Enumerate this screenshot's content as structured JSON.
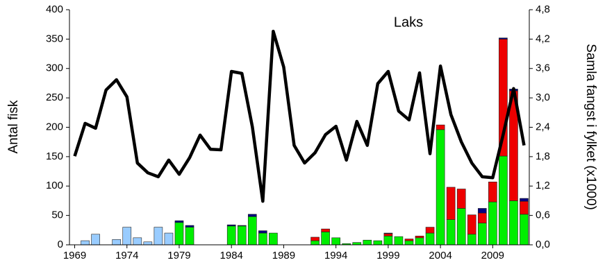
{
  "chart_data": {
    "type": "bar",
    "annotation": "Laks",
    "ylabel": "Antal fisk",
    "y2label": "Samla fangst i fylket (x1000)",
    "x": [
      1969,
      1970,
      1971,
      1972,
      1973,
      1974,
      1975,
      1976,
      1977,
      1978,
      1979,
      1980,
      1981,
      1982,
      1983,
      1984,
      1985,
      1986,
      1987,
      1988,
      1989,
      1990,
      1991,
      1992,
      1993,
      1994,
      1995,
      1996,
      1997,
      1998,
      1999,
      2000,
      2001,
      2002,
      2003,
      2004,
      2005,
      2006,
      2007,
      2008,
      2009,
      2010,
      2011,
      2012
    ],
    "xlim": [
      1968.5,
      2012.5
    ],
    "xticks": [
      1969,
      1974,
      1979,
      1984,
      1989,
      1994,
      1999,
      2004,
      2009
    ],
    "ylim": [
      0,
      400
    ],
    "yticks": [
      0,
      50,
      100,
      150,
      200,
      250,
      300,
      350,
      400
    ],
    "y2lim": [
      0,
      4.8
    ],
    "y2ticks": [
      {
        "value": 0,
        "label": "0,0"
      },
      {
        "value": 0.6,
        "label": "0,6"
      },
      {
        "value": 1.2,
        "label": "1,2"
      },
      {
        "value": 1.8,
        "label": "1,8"
      },
      {
        "value": 2.4,
        "label": "2,4"
      },
      {
        "value": 3.0,
        "label": "3,0"
      },
      {
        "value": 3.6,
        "label": "3,6"
      },
      {
        "value": 4.2,
        "label": "4,2"
      },
      {
        "value": 4.8,
        "label": "4,8"
      }
    ],
    "series": [
      {
        "type": "bar",
        "color": "#99ccff",
        "values": [
          0,
          7,
          18,
          0,
          9,
          30,
          12,
          5,
          30,
          20,
          0,
          0,
          0,
          0,
          0,
          0,
          0,
          0,
          0,
          0,
          0,
          0,
          0,
          0,
          0,
          0,
          0,
          0,
          0,
          0,
          0,
          0,
          0,
          0,
          0,
          0,
          0,
          0,
          0,
          0,
          0,
          0,
          0,
          0
        ]
      },
      {
        "type": "bar",
        "color": "#00ee00",
        "values": [
          0,
          0,
          0,
          0,
          0,
          0,
          0,
          0,
          0,
          0,
          38,
          30,
          0,
          0,
          0,
          32,
          32,
          48,
          20,
          20,
          0,
          0,
          0,
          7,
          22,
          12,
          2,
          4,
          8,
          7,
          15,
          14,
          7,
          12,
          20,
          196,
          43,
          62,
          18,
          37,
          73,
          151,
          75,
          52
        ]
      },
      {
        "type": "bar",
        "color": "#ee0000",
        "values": [
          0,
          0,
          0,
          0,
          0,
          0,
          0,
          0,
          0,
          0,
          0,
          0,
          0,
          0,
          0,
          0,
          0,
          0,
          0,
          0,
          0,
          0,
          0,
          6,
          5,
          0,
          0,
          0,
          0,
          0,
          4,
          0,
          3,
          3,
          10,
          8,
          55,
          33,
          33,
          17,
          34,
          199,
          187,
          22
        ]
      },
      {
        "type": "bar",
        "color": "#000080",
        "values": [
          0,
          0,
          0,
          0,
          0,
          0,
          0,
          0,
          0,
          0,
          3,
          3,
          0,
          0,
          0,
          2,
          1,
          4,
          4,
          0,
          0,
          0,
          0,
          0,
          0,
          0,
          0,
          0,
          0,
          0,
          1,
          0,
          0,
          0,
          0,
          0,
          0,
          0,
          0,
          8,
          0,
          2,
          3,
          5
        ]
      },
      {
        "type": "line",
        "axis": "y2",
        "color": "#000000",
        "values": [
          1.81,
          2.48,
          2.38,
          3.16,
          3.37,
          3.02,
          1.67,
          1.47,
          1.39,
          1.73,
          1.44,
          1.78,
          2.24,
          1.95,
          1.94,
          3.54,
          3.5,
          2.41,
          0.89,
          4.36,
          3.63,
          2.03,
          1.67,
          1.88,
          2.25,
          2.42,
          1.73,
          2.52,
          2.03,
          3.29,
          3.54,
          2.73,
          2.55,
          3.51,
          1.86,
          3.65,
          2.66,
          2.1,
          1.67,
          1.39,
          1.37,
          2.25,
          3.19,
          2.03
        ]
      }
    ]
  }
}
